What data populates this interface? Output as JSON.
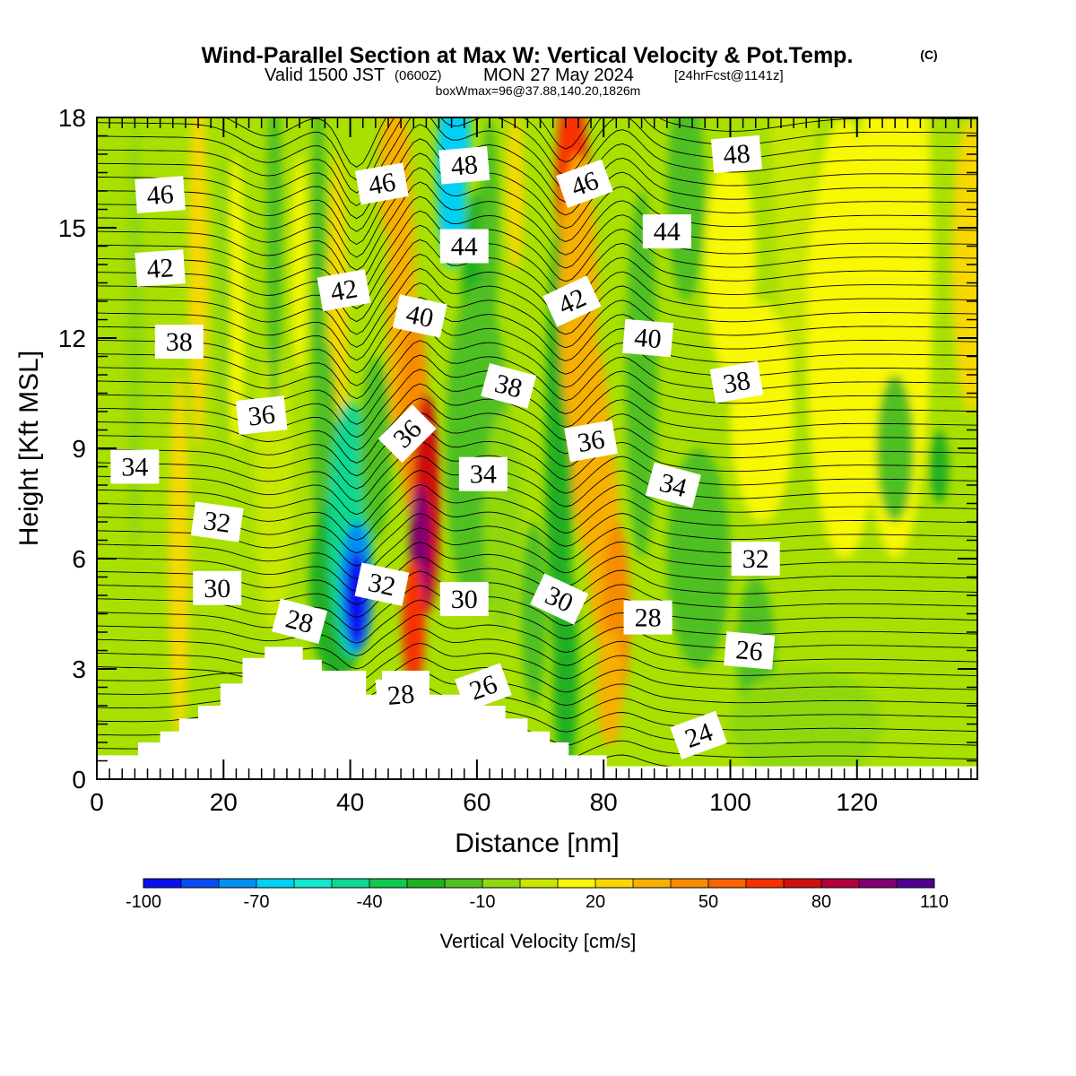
{
  "header": {
    "title": "Wind-Parallel Section at Max W: Vertical Velocity & Pot.Temp.",
    "copyright": "(C)",
    "valid_prefix": "Valid 1500 JST",
    "valid_zulu": "(0600Z)",
    "valid_date": "MON 27 May 2024",
    "forecast": "[24hrFcst@1141z]",
    "box_info": "boxWmax=96@37.88,140.20,1826m"
  },
  "chart_data": {
    "type": "heatmap",
    "xlabel": "Distance [nm]",
    "ylabel": "Height [Kft MSL]",
    "xlim": [
      0,
      139
    ],
    "ylim": [
      0,
      18
    ],
    "xticks": [
      "0",
      "20",
      "40",
      "60",
      "80",
      "100",
      "120"
    ],
    "yticks": [
      "0",
      "3",
      "6",
      "9",
      "12",
      "15",
      "18"
    ],
    "colorbar": {
      "label": "Vertical Velocity [cm/s]",
      "tick_labels": [
        "-100",
        "-70",
        "-40",
        "-10",
        "20",
        "50",
        "80",
        "110"
      ],
      "min": -100,
      "max": 110,
      "step": 10,
      "colors": [
        "#0a0ff0",
        "#0a4cf5",
        "#0090f5",
        "#00d0f5",
        "#10e8d0",
        "#10d890",
        "#10c850",
        "#20b020",
        "#50c020",
        "#90d810",
        "#c8e800",
        "#f8f800",
        "#f8d800",
        "#f8b000",
        "#f88c00",
        "#f86400",
        "#f83000",
        "#d01010",
        "#b00040",
        "#800070",
        "#500090"
      ]
    },
    "updrafts": [
      {
        "distance_nm": 51,
        "height_kft": 6.2,
        "value": 96
      },
      {
        "distance_nm": 75,
        "height_kft": 17,
        "value": 60
      },
      {
        "distance_nm": 82,
        "height_kft": 5,
        "value": 45
      }
    ],
    "downdrafts": [
      {
        "distance_nm": 41,
        "height_kft": 5.2,
        "value": -95
      },
      {
        "distance_nm": 59,
        "height_kft": 17,
        "value": -70
      }
    ],
    "theta_contour_labels": [
      {
        "text": "46",
        "x": 10,
        "y": 15.9
      },
      {
        "text": "42",
        "x": 10,
        "y": 13.9
      },
      {
        "text": "38",
        "x": 13,
        "y": 11.9
      },
      {
        "text": "36",
        "x": 26,
        "y": 9.9
      },
      {
        "text": "34",
        "x": 6,
        "y": 8.5
      },
      {
        "text": "32",
        "x": 19,
        "y": 7.0
      },
      {
        "text": "30",
        "x": 19,
        "y": 5.2
      },
      {
        "text": "28",
        "x": 32,
        "y": 4.3
      },
      {
        "text": "46",
        "x": 45,
        "y": 16.2
      },
      {
        "text": "48",
        "x": 58,
        "y": 16.7
      },
      {
        "text": "44",
        "x": 58,
        "y": 14.5
      },
      {
        "text": "42",
        "x": 39,
        "y": 13.3
      },
      {
        "text": "40",
        "x": 51,
        "y": 12.6
      },
      {
        "text": "38",
        "x": 65,
        "y": 10.7
      },
      {
        "text": "36",
        "x": 49,
        "y": 9.4
      },
      {
        "text": "34",
        "x": 61,
        "y": 8.3
      },
      {
        "text": "32",
        "x": 45,
        "y": 5.3
      },
      {
        "text": "30",
        "x": 58,
        "y": 4.9
      },
      {
        "text": "28",
        "x": 48,
        "y": 2.3
      },
      {
        "text": "26",
        "x": 61,
        "y": 2.5
      },
      {
        "text": "46",
        "x": 77,
        "y": 16.2
      },
      {
        "text": "42",
        "x": 75,
        "y": 13.0
      },
      {
        "text": "36",
        "x": 78,
        "y": 9.2
      },
      {
        "text": "30",
        "x": 73,
        "y": 4.9
      },
      {
        "text": "28",
        "x": 87,
        "y": 4.4
      },
      {
        "text": "48",
        "x": 101,
        "y": 17.0
      },
      {
        "text": "44",
        "x": 90,
        "y": 14.9
      },
      {
        "text": "40",
        "x": 87,
        "y": 12.0
      },
      {
        "text": "38",
        "x": 101,
        "y": 10.8
      },
      {
        "text": "34",
        "x": 91,
        "y": 8.0
      },
      {
        "text": "32",
        "x": 104,
        "y": 6.0
      },
      {
        "text": "26",
        "x": 103,
        "y": 3.5
      },
      {
        "text": "24",
        "x": 95,
        "y": 1.2
      }
    ]
  }
}
